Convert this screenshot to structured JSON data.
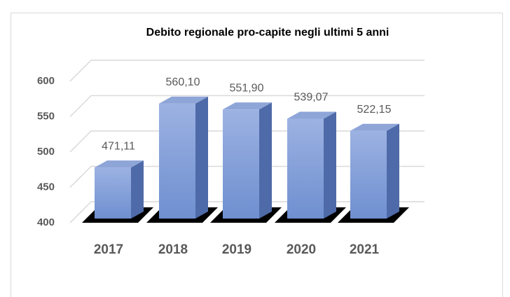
{
  "chart_data": {
    "type": "bar3d",
    "title": "Debito regionale pro-capite negli ultimi 5 anni",
    "categories": [
      "2017",
      "2018",
      "2019",
      "2020",
      "2021"
    ],
    "values": [
      471.11,
      560.1,
      551.9,
      539.07,
      522.15
    ],
    "value_labels": [
      "471,11",
      "560,10",
      "551,90",
      "539,07",
      "522,15"
    ],
    "color": "#7f9bd6",
    "ylim": [
      400,
      600
    ],
    "yticks": [
      400,
      450,
      500,
      550,
      600
    ],
    "grid": true
  }
}
